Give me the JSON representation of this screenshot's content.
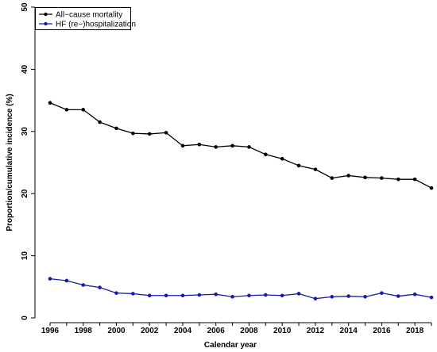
{
  "chart_data": {
    "type": "line",
    "x": [
      1996,
      1997,
      1998,
      1999,
      2000,
      2001,
      2002,
      2003,
      2004,
      2005,
      2006,
      2007,
      2008,
      2009,
      2010,
      2011,
      2012,
      2013,
      2014,
      2015,
      2016,
      2017,
      2018,
      2019
    ],
    "series": [
      {
        "name": "All−cause mortality",
        "color": "#000000",
        "values": [
          34.6,
          33.5,
          33.5,
          31.5,
          30.5,
          29.7,
          29.6,
          29.8,
          27.7,
          27.9,
          27.5,
          27.7,
          27.5,
          26.3,
          25.6,
          24.5,
          23.9,
          22.5,
          22.9,
          22.6,
          22.5,
          22.3,
          22.3,
          20.9
        ]
      },
      {
        "name": "HF (re−)hospitalization",
        "color": "#1a1aa8",
        "values": [
          6.3,
          6.0,
          5.3,
          4.9,
          4.0,
          3.9,
          3.6,
          3.6,
          3.6,
          3.7,
          3.8,
          3.4,
          3.6,
          3.7,
          3.6,
          3.9,
          3.1,
          3.4,
          3.5,
          3.4,
          4.0,
          3.5,
          3.8,
          3.3
        ]
      }
    ],
    "xlabel": "Calendar year",
    "ylabel": "Proportion/cumulative incidence (%)",
    "xticks": [
      "1996",
      "1998",
      "2000",
      "2002",
      "2004",
      "2006",
      "2008",
      "2010",
      "2012",
      "2014",
      "2016",
      "2018"
    ],
    "yticks": [
      "0",
      "10",
      "20",
      "30",
      "40",
      "50"
    ],
    "xlim": [
      1996,
      2019
    ],
    "ylim": [
      0,
      50
    ],
    "grid": false,
    "legend_position": "top-left"
  }
}
